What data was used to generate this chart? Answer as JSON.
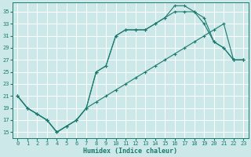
{
  "xlabel": "Humidex (Indice chaleur)",
  "bg_color": "#cce8e8",
  "grid_color": "#ffffff",
  "line_color": "#1a7a6e",
  "marker": "+",
  "xlim": [
    -0.5,
    23.5
  ],
  "ylim": [
    14,
    36.5
  ],
  "yticks": [
    15,
    17,
    19,
    21,
    23,
    25,
    27,
    29,
    31,
    33,
    35
  ],
  "xticks": [
    0,
    1,
    2,
    3,
    4,
    5,
    6,
    7,
    8,
    9,
    10,
    11,
    12,
    13,
    14,
    15,
    16,
    17,
    18,
    19,
    20,
    21,
    22,
    23
  ],
  "line1_x": [
    0,
    1,
    2,
    3,
    4,
    5,
    6,
    7,
    8,
    9,
    10,
    11,
    12,
    13,
    14,
    15,
    16,
    17,
    18,
    19,
    20,
    21,
    22,
    23
  ],
  "line1_y": [
    21,
    19,
    18,
    17,
    15,
    16,
    17,
    19,
    20,
    21,
    22,
    23,
    24,
    25,
    26,
    27,
    28,
    29,
    30,
    31,
    32,
    33,
    27,
    27
  ],
  "line2_x": [
    0,
    1,
    2,
    3,
    4,
    5,
    6,
    7,
    8,
    9,
    10,
    11,
    12,
    13,
    14,
    15,
    16,
    17,
    18,
    19,
    20,
    21,
    22,
    23
  ],
  "line2_y": [
    21,
    19,
    18,
    17,
    15,
    16,
    17,
    19,
    25,
    26,
    31,
    32,
    32,
    32,
    33,
    34,
    35,
    35,
    35,
    33,
    30,
    29,
    27,
    27
  ],
  "line3_x": [
    0,
    1,
    2,
    3,
    4,
    5,
    6,
    7,
    8,
    9,
    10,
    11,
    12,
    13,
    14,
    15,
    16,
    17,
    18,
    19,
    20,
    21,
    22,
    23
  ],
  "line3_y": [
    21,
    19,
    18,
    17,
    15,
    16,
    17,
    19,
    25,
    26,
    31,
    32,
    32,
    32,
    33,
    34,
    36,
    36,
    35,
    34,
    30,
    29,
    27,
    27
  ],
  "xlabel_fontsize": 6,
  "tick_fontsize": 5
}
